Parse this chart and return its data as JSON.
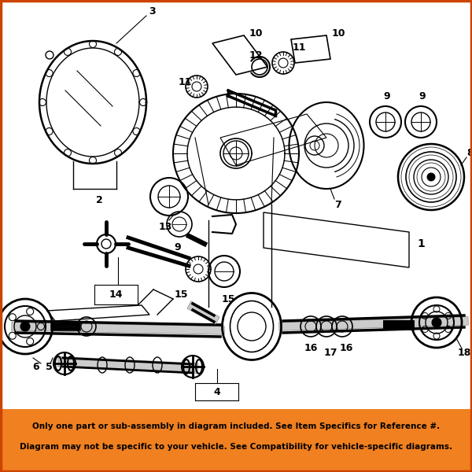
{
  "bg_color": "#ffffff",
  "banner_color": "#f08020",
  "banner_text_line1": "Only one part or sub-assembly in diagram included. See Item Specifics for Reference #.",
  "banner_text_line2": "Diagram may not be specific to your vehicle. See Compatibility for vehicle-specific diagrams.",
  "border_color": "#cc4400",
  "border_width": 2.5,
  "banner_text_color": "#000000",
  "banner_font_size": 7.5,
  "fig_w": 6.0,
  "fig_h": 6.0,
  "dpi": 100
}
